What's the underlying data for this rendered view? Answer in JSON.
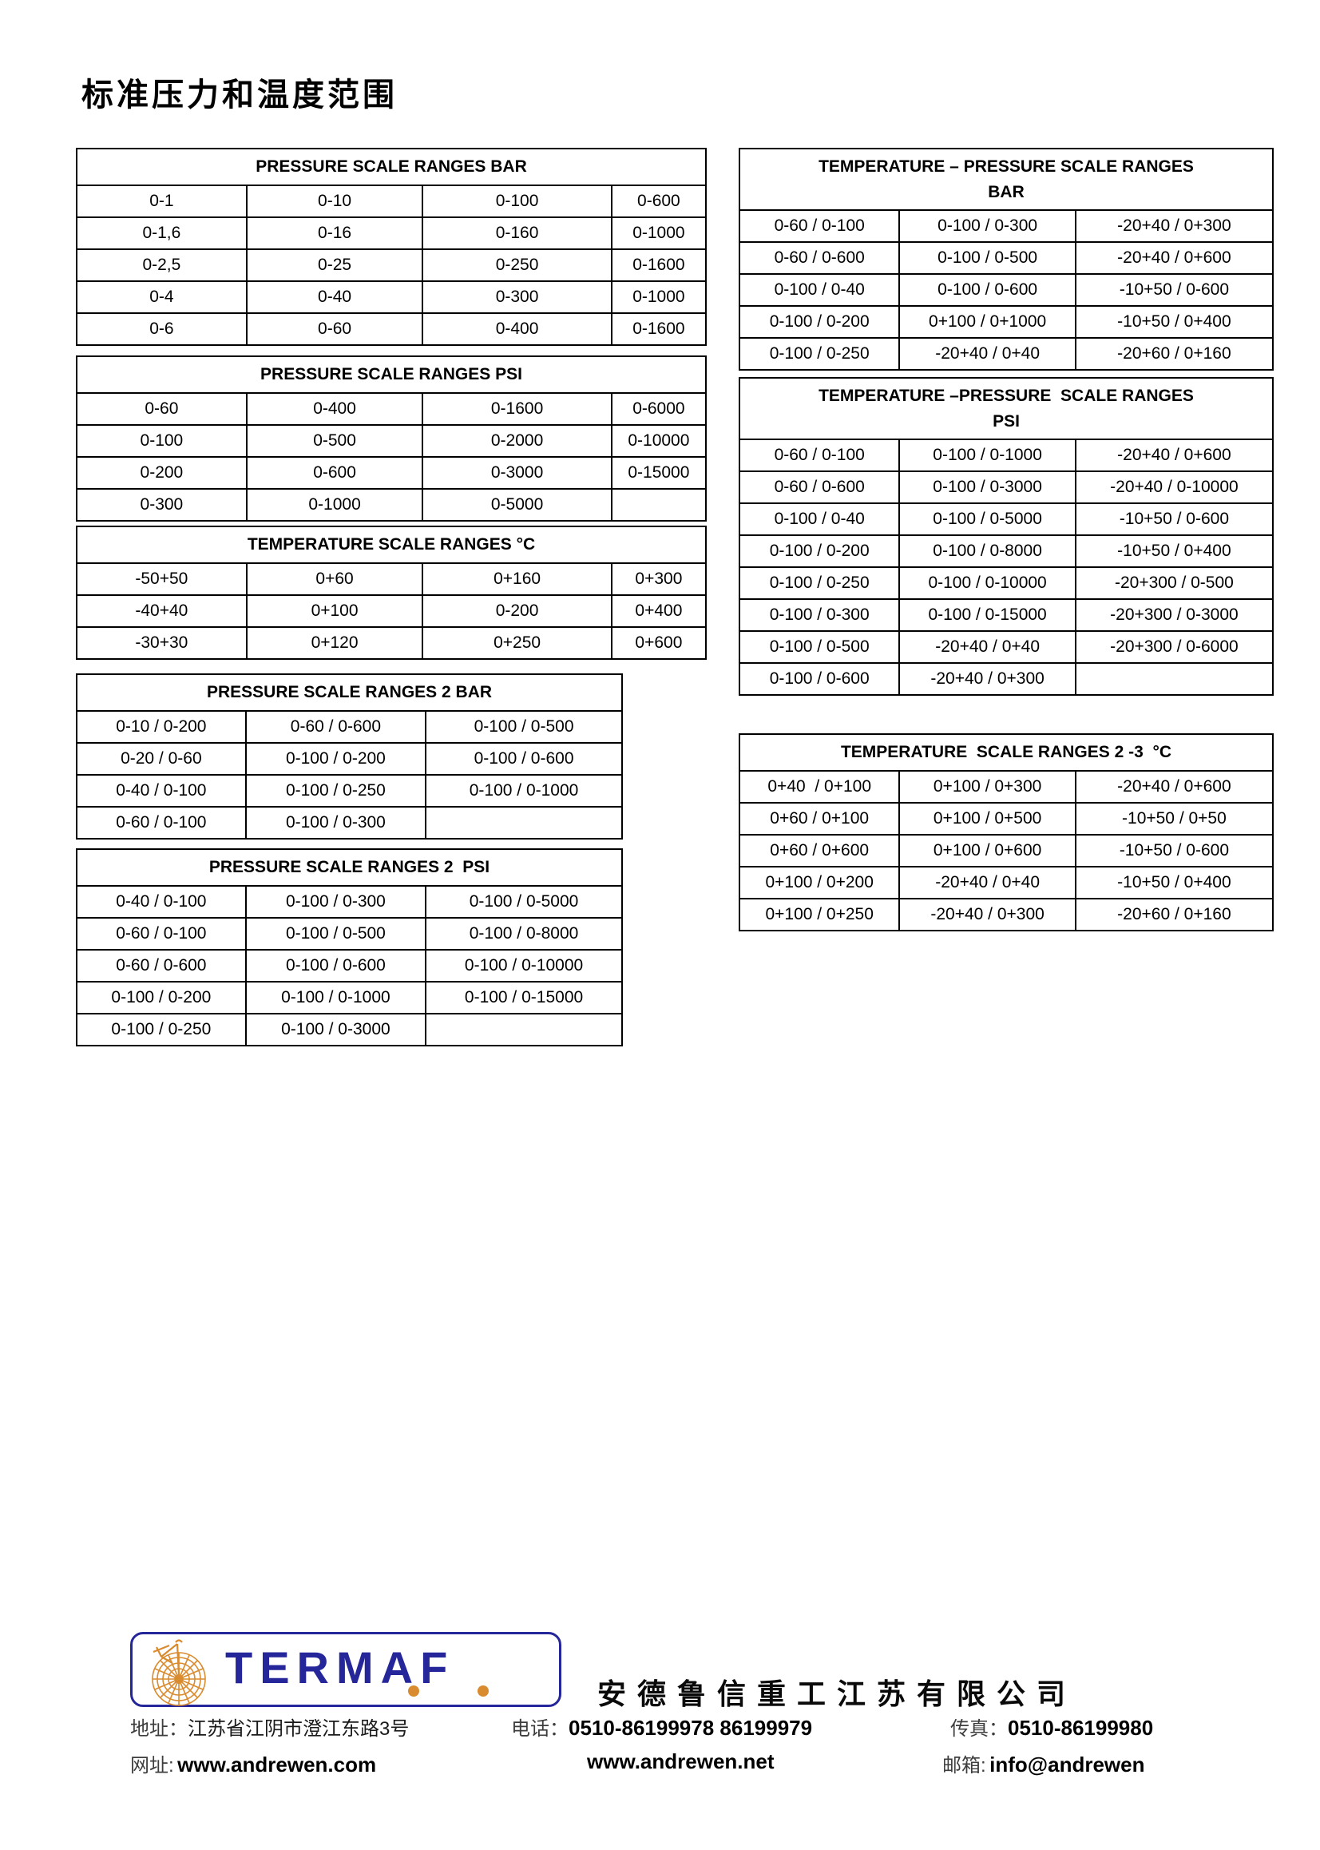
{
  "page": {
    "title": "标准压力和温度范围"
  },
  "tables": [
    {
      "id": "pressure-bar",
      "title": [
        "PRESSURE SCALE RANGES BAR"
      ],
      "rows": [
        [
          "0-1",
          "0-10",
          "0-100",
          "0-600"
        ],
        [
          "0-1,6",
          "0-16",
          "0-160",
          "0-1000"
        ],
        [
          "0-2,5",
          "0-25",
          "0-250",
          "0-1600"
        ],
        [
          "0-4",
          "0-40",
          "0-300",
          "0-1000"
        ],
        [
          "0-6",
          "0-60",
          "0-400",
          "0-1600"
        ]
      ]
    },
    {
      "id": "pressure-psi",
      "title": [
        "PRESSURE SCALE RANGES PSI"
      ],
      "rows": [
        [
          "0-60",
          "0-400",
          "0-1600",
          "0-6000"
        ],
        [
          "0-100",
          "0-500",
          "0-2000",
          "0-10000"
        ],
        [
          "0-200",
          "0-600",
          "0-3000",
          "0-15000"
        ],
        [
          "0-300",
          "0-1000",
          "0-5000",
          ""
        ]
      ]
    },
    {
      "id": "temperature-c",
      "title": [
        "TEMPERATURE SCALE RANGES °C"
      ],
      "rows": [
        [
          "-50+50",
          "0+60",
          "0+160",
          "0+300"
        ],
        [
          "-40+40",
          "0+100",
          "0-200",
          "0+400"
        ],
        [
          "-30+30",
          "0+120",
          "0+250",
          "0+600"
        ]
      ]
    },
    {
      "id": "pressure-2-bar",
      "title": [
        "PRESSURE SCALE RANGES 2 BAR"
      ],
      "rows": [
        [
          "0-10 / 0-200",
          "0-60 / 0-600",
          "0-100 / 0-500"
        ],
        [
          "0-20 / 0-60",
          "0-100 / 0-200",
          "0-100 / 0-600"
        ],
        [
          "0-40 / 0-100",
          "0-100 / 0-250",
          "0-100 / 0-1000"
        ],
        [
          "0-60 / 0-100",
          "0-100 / 0-300",
          ""
        ]
      ]
    },
    {
      "id": "pressure-2-psi",
      "title": [
        "PRESSURE SCALE RANGES 2  PSI"
      ],
      "rows": [
        [
          "0-40 / 0-100",
          "0-100 / 0-300",
          "0-100 / 0-5000"
        ],
        [
          "0-60 / 0-100",
          "0-100 / 0-500",
          "0-100 / 0-8000"
        ],
        [
          "0-60 / 0-600",
          "0-100 / 0-600",
          "0-100 / 0-10000"
        ],
        [
          "0-100 / 0-200",
          "0-100 / 0-1000",
          "0-100 / 0-15000"
        ],
        [
          "0-100 / 0-250",
          "0-100 / 0-3000",
          ""
        ]
      ]
    },
    {
      "id": "temp-pressure-bar",
      "title": [
        "TEMPERATURE – PRESSURE SCALE RANGES",
        "BAR"
      ],
      "rows": [
        [
          "0-60 / 0-100",
          "0-100 / 0-300",
          "-20+40 / 0+300"
        ],
        [
          "0-60 / 0-600",
          "0-100 / 0-500",
          "-20+40 / 0+600"
        ],
        [
          "0-100 / 0-40",
          "0-100 / 0-600",
          "-10+50 / 0-600"
        ],
        [
          "0-100 / 0-200",
          "0+100 / 0+1000",
          "-10+50 / 0+400"
        ],
        [
          "0-100 / 0-250",
          "-20+40 / 0+40",
          "-20+60 / 0+160"
        ]
      ]
    },
    {
      "id": "temp-pressure-psi",
      "title": [
        "TEMPERATURE –PRESSURE  SCALE RANGES",
        "PSI"
      ],
      "rows": [
        [
          "0-60 / 0-100",
          "0-100 / 0-1000",
          "-20+40 / 0+600"
        ],
        [
          "0-60 / 0-600",
          "0-100 / 0-3000",
          "-20+40 / 0-10000"
        ],
        [
          "0-100 / 0-40",
          "0-100 / 0-5000",
          "-10+50 / 0-600"
        ],
        [
          "0-100 / 0-200",
          "0-100 / 0-8000",
          "-10+50 / 0+400"
        ],
        [
          "0-100 / 0-250",
          "0-100 / 0-10000",
          "-20+300 / 0-500"
        ],
        [
          "0-100 / 0-300",
          "0-100 / 0-15000",
          "-20+300 / 0-3000"
        ],
        [
          "0-100 / 0-500",
          "-20+40 / 0+40",
          "-20+300 / 0-6000"
        ],
        [
          "0-100 / 0-600",
          "-20+40 / 0+300",
          ""
        ]
      ]
    },
    {
      "id": "temperature-2-3-c",
      "title": [
        "TEMPERATURE  SCALE RANGES 2 -3  °C"
      ],
      "rows": [
        [
          "0+40  / 0+100",
          "0+100 / 0+300",
          "-20+40 / 0+600"
        ],
        [
          "0+60 / 0+100",
          "0+100 / 0+500",
          "-10+50 / 0+50"
        ],
        [
          "0+60 / 0+600",
          "0+100 / 0+600",
          "-10+50 / 0-600"
        ],
        [
          "0+100 / 0+200",
          "-20+40 / 0+40",
          "-10+50 / 0+400"
        ],
        [
          "0+100 / 0+250",
          "-20+40 / 0+300",
          "-20+60 / 0+160"
        ]
      ]
    }
  ],
  "footer": {
    "logo_text": "TERMAF",
    "company": "安德鲁信重工江苏有限公司",
    "address_label": "地址：",
    "address": "江苏省江阴市澄江东路3号",
    "phone_label": "电话：",
    "phone": "0510-86199978  86199979",
    "fax_label": "传真：",
    "fax": "0510-86199980",
    "web_label": "网址:",
    "website1": "www.andrewen.com",
    "website2": "www.andrewen.net",
    "email_label": "邮箱:",
    "email": "info@andrewen",
    "colors": {
      "logo_navy": "#26269b",
      "logo_orange": "#d98b2f"
    }
  }
}
